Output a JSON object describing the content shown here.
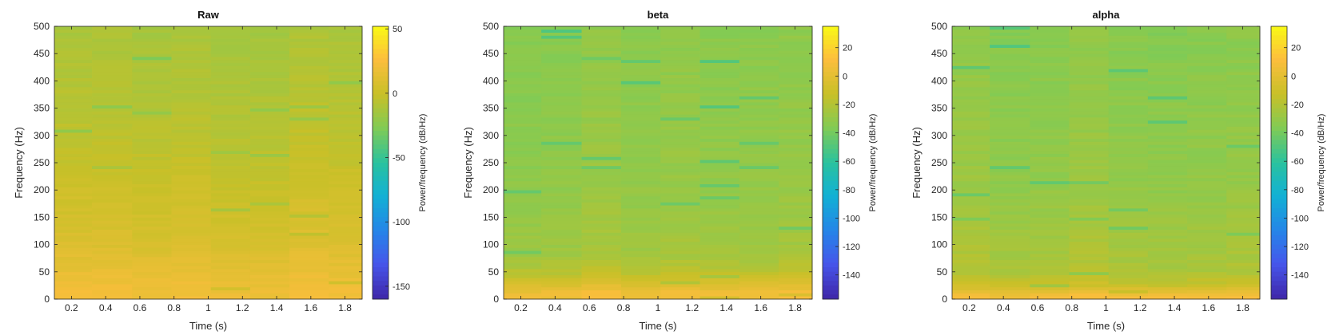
{
  "chart_data": [
    {
      "type": "heatmap",
      "title": "Raw",
      "xlabel": "Time (s)",
      "ylabel": "Frequency (Hz)",
      "colorbar_label": "Power/frequency (dB/Hz)",
      "xlim": [
        0.1,
        1.9
      ],
      "ylim": [
        0,
        500
      ],
      "xticks": [
        "0.2",
        "0.4",
        "0.6",
        "0.8",
        "1",
        "1.2",
        "1.4",
        "1.6",
        "1.8"
      ],
      "yticks": [
        "0",
        "50",
        "100",
        "150",
        "200",
        "250",
        "300",
        "350",
        "400",
        "450",
        "500"
      ],
      "clim": [
        -160,
        52
      ],
      "cticks": [
        "50",
        "0",
        "-50",
        "-100",
        "-150"
      ],
      "time_bins": [
        0.2,
        0.44,
        0.67,
        0.9,
        1.13,
        1.36,
        1.59,
        1.82
      ],
      "freq_profile": [
        [
          0,
          22
        ],
        [
          50,
          15
        ],
        [
          100,
          8
        ],
        [
          150,
          4
        ],
        [
          200,
          1
        ],
        [
          300,
          -6
        ],
        [
          400,
          -10
        ],
        [
          500,
          -13
        ]
      ]
    },
    {
      "type": "heatmap",
      "title": "beta",
      "xlabel": "Time (s)",
      "ylabel": "Frequency (Hz)",
      "colorbar_label": "Power/frequency (dB/Hz)",
      "xlim": [
        0.1,
        1.9
      ],
      "ylim": [
        0,
        500
      ],
      "xticks": [
        "0.2",
        "0.4",
        "0.6",
        "0.8",
        "1",
        "1.2",
        "1.4",
        "1.6",
        "1.8"
      ],
      "yticks": [
        "0",
        "50",
        "100",
        "150",
        "200",
        "250",
        "300",
        "350",
        "400",
        "450",
        "500"
      ],
      "clim": [
        -157,
        35
      ],
      "cticks": [
        "20",
        "0",
        "-20",
        "-40",
        "-60",
        "-80",
        "-100",
        "-120",
        "-140"
      ],
      "time_bins": [
        0.2,
        0.44,
        0.67,
        0.9,
        1.13,
        1.36,
        1.59,
        1.82
      ],
      "freq_profile": [
        [
          0,
          8
        ],
        [
          15,
          5
        ],
        [
          30,
          -5
        ],
        [
          45,
          -15
        ],
        [
          80,
          -25
        ],
        [
          200,
          -30
        ],
        [
          500,
          -33
        ]
      ]
    },
    {
      "type": "heatmap",
      "title": "alpha",
      "xlabel": "Time (s)",
      "ylabel": "Frequency (Hz)",
      "colorbar_label": "Power/frequency (dB/Hz)",
      "xlim": [
        0.1,
        1.9
      ],
      "ylim": [
        0,
        500
      ],
      "xticks": [
        "0.2",
        "0.4",
        "0.6",
        "0.8",
        "1",
        "1.2",
        "1.4",
        "1.6",
        "1.8"
      ],
      "yticks": [
        "0",
        "50",
        "100",
        "150",
        "200",
        "250",
        "300",
        "350",
        "400",
        "450",
        "500"
      ],
      "clim": [
        -157,
        35
      ],
      "cticks": [
        "20",
        "0",
        "-20",
        "-40",
        "-60",
        "-80",
        "-100",
        "-120",
        "-140"
      ],
      "time_bins": [
        0.2,
        0.44,
        0.67,
        0.9,
        1.13,
        1.36,
        1.59,
        1.82
      ],
      "freq_profile": [
        [
          0,
          12
        ],
        [
          10,
          5
        ],
        [
          25,
          -12
        ],
        [
          50,
          -22
        ],
        [
          200,
          -30
        ],
        [
          500,
          -34
        ]
      ]
    }
  ]
}
